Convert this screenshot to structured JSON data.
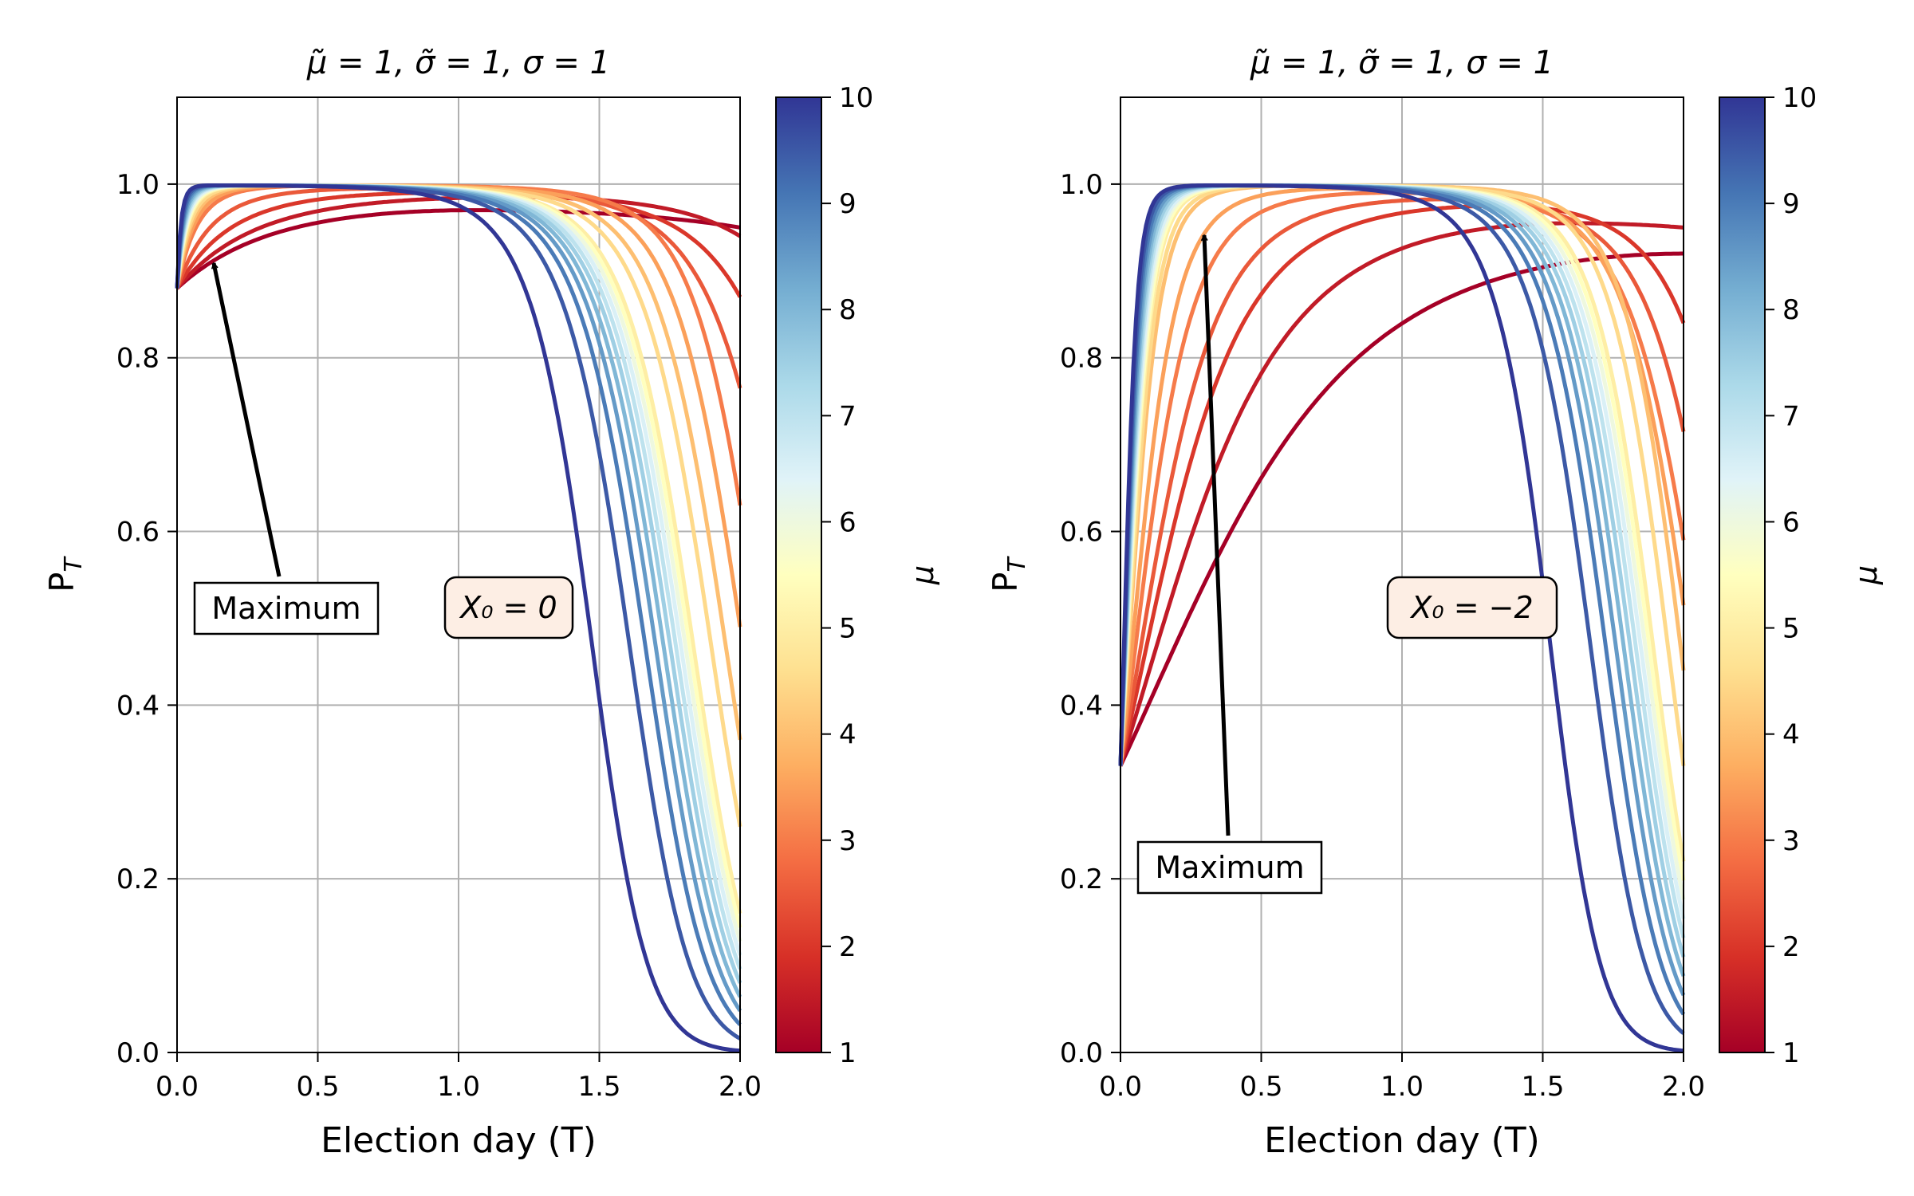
{
  "chart_data": [
    {
      "type": "line",
      "title": "μ̃ = 1, σ̃ = 1, σ = 1",
      "xlabel": "Election day (T)",
      "ylabel": "P_T",
      "xlim": [
        0,
        2.0
      ],
      "ylim": [
        0,
        1.1
      ],
      "xticks": [
        "0.0",
        "0.5",
        "1.0",
        "1.5",
        "2.0"
      ],
      "yticks": [
        "0.0",
        "0.2",
        "0.4",
        "0.6",
        "0.8",
        "1.0"
      ],
      "grid": true,
      "x0_label": "X₀ = 0",
      "annotation": {
        "text": "Maximum",
        "arrow_to": [
          0.13,
          0.91
        ],
        "text_at": [
          0.39,
          0.51
        ]
      },
      "colorbar": {
        "label": "μ",
        "min": 1,
        "max": 10,
        "ticks": [
          "1",
          "2",
          "3",
          "4",
          "5",
          "6",
          "7",
          "8",
          "9",
          "10"
        ],
        "colormap": "RdYlBu"
      },
      "curve_family": {
        "mu_values": [
          1,
          1.5,
          2,
          2.5,
          3,
          3.5,
          4,
          4.5,
          5,
          5.5,
          6,
          6.5,
          7,
          7.5,
          8,
          8.5,
          9,
          9.5,
          10
        ],
        "start_y": 0.88
      },
      "series_peaks": [
        {
          "mu": 1,
          "peak_x": 1.05,
          "peak_y": 0.97,
          "end_y": 0.95
        },
        {
          "mu": 1.5,
          "peak_x": 1.2,
          "peak_y": 0.985,
          "end_y": 0.94
        },
        {
          "mu": 2,
          "peak_x": 0.95,
          "peak_y": 0.99,
          "end_y": 0.87
        },
        {
          "mu": 2.5,
          "peak_x": 0.75,
          "peak_y": 0.995,
          "end_y": 0.765
        },
        {
          "mu": 3,
          "peak_x": 0.6,
          "peak_y": 1.0,
          "end_y": 0.63
        },
        {
          "mu": 3.5,
          "peak_x": 0.5,
          "peak_y": 1.0,
          "end_y": 0.49
        },
        {
          "mu": 4,
          "peak_x": 0.42,
          "peak_y": 1.0,
          "end_y": 0.36
        },
        {
          "mu": 5,
          "peak_x": 0.32,
          "peak_y": 1.0,
          "end_y": 0.16
        },
        {
          "mu": 10,
          "peak_x": 0.11,
          "peak_y": 1.0,
          "end_y": 0.0
        }
      ]
    },
    {
      "type": "line",
      "title": "μ̃ = 1, σ̃ = 1, σ = 1",
      "xlabel": "Election day (T)",
      "ylabel": "P_T",
      "xlim": [
        0,
        2.0
      ],
      "ylim": [
        0,
        1.1
      ],
      "xticks": [
        "0.0",
        "0.5",
        "1.0",
        "1.5",
        "2.0"
      ],
      "yticks": [
        "0.0",
        "0.2",
        "0.4",
        "0.6",
        "0.8",
        "1.0"
      ],
      "grid": true,
      "x0_label": "X₀ = −2",
      "annotation": {
        "text": "Maximum",
        "arrow_to": [
          0.3,
          0.94
        ],
        "text_at": [
          0.39,
          0.21
        ]
      },
      "colorbar": {
        "label": "μ",
        "min": 1,
        "max": 10,
        "ticks": [
          "1",
          "2",
          "3",
          "4",
          "5",
          "6",
          "7",
          "8",
          "9",
          "10"
        ],
        "colormap": "RdYlBu"
      },
      "curve_family": {
        "mu_values": [
          1,
          1.5,
          2,
          2.5,
          3,
          3.5,
          4,
          4.5,
          5,
          5.5,
          6,
          6.5,
          7,
          7.5,
          8,
          8.5,
          9,
          9.5,
          10
        ],
        "start_y": 0.33
      },
      "series_peaks": [
        {
          "mu": 1,
          "peak_x": 2.0,
          "peak_y": 0.92,
          "end_y": 0.92
        },
        {
          "mu": 1.5,
          "peak_x": 1.6,
          "peak_y": 0.955,
          "end_y": 0.95
        },
        {
          "mu": 2,
          "peak_x": 1.35,
          "peak_y": 0.975,
          "end_y": 0.84
        },
        {
          "mu": 3,
          "peak_x": 0.95,
          "peak_y": 0.99,
          "end_y": 0.59
        },
        {
          "mu": 4,
          "peak_x": 0.72,
          "peak_y": 1.0,
          "end_y": 0.44
        },
        {
          "mu": 5,
          "peak_x": 0.58,
          "peak_y": 1.0,
          "end_y": 0.22
        },
        {
          "mu": 10,
          "peak_x": 0.3,
          "peak_y": 1.0,
          "end_y": 0.0
        }
      ]
    }
  ]
}
